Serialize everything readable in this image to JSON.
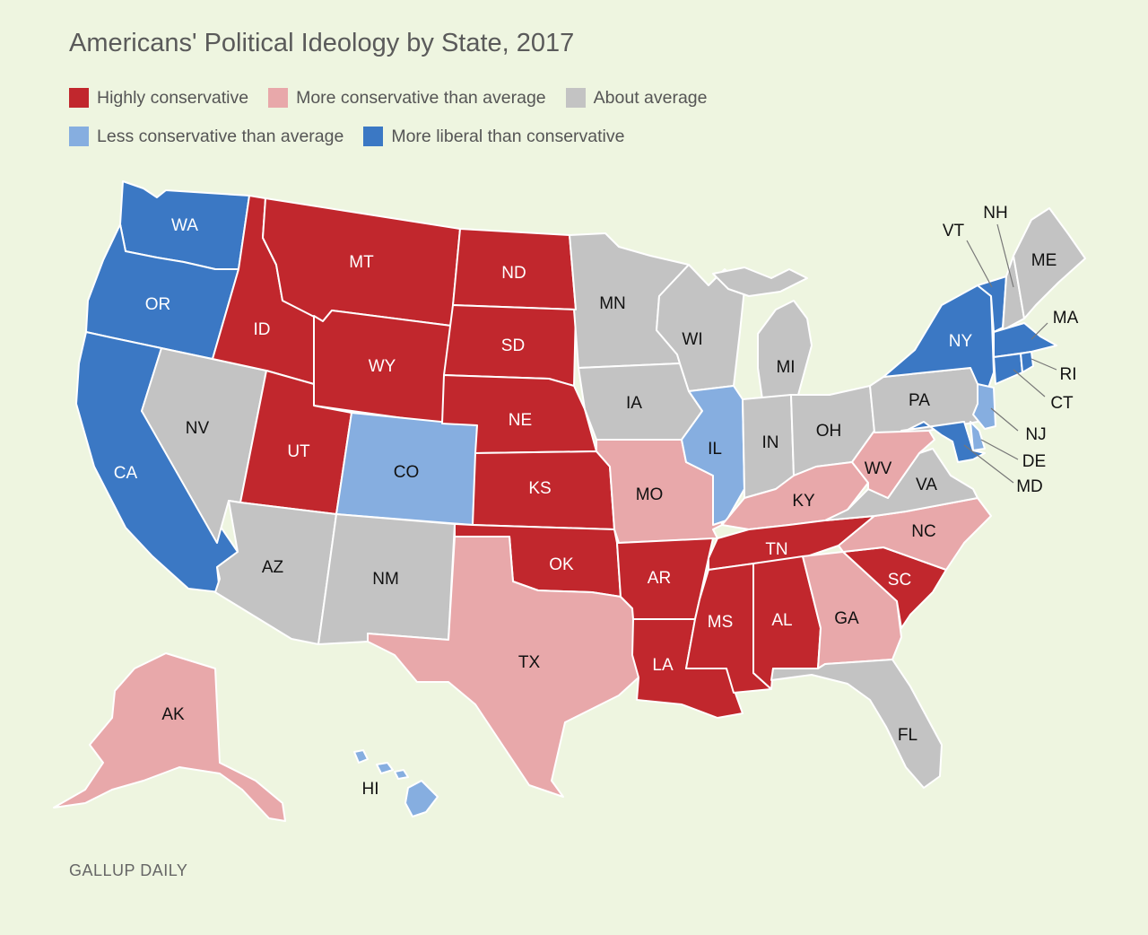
{
  "title": "Americans' Political Ideology by State, 2017",
  "source": "GALLUP DAILY",
  "colors": {
    "highly_conservative": "#c1272d",
    "more_conservative": "#e8a8aa",
    "about_average": "#c3c3c3",
    "less_conservative": "#86aee0",
    "more_liberal": "#3b78c4"
  },
  "legend": [
    {
      "key": "highly_conservative",
      "label": "Highly conservative"
    },
    {
      "key": "more_conservative",
      "label": "More conservative than average"
    },
    {
      "key": "about_average",
      "label": "About average"
    },
    {
      "key": "less_conservative",
      "label": "Less conservative than average"
    },
    {
      "key": "more_liberal",
      "label": "More liberal than conservative"
    }
  ],
  "states": [
    {
      "code": "WA",
      "category": "more_liberal"
    },
    {
      "code": "OR",
      "category": "more_liberal"
    },
    {
      "code": "CA",
      "category": "more_liberal"
    },
    {
      "code": "NV",
      "category": "about_average"
    },
    {
      "code": "ID",
      "category": "highly_conservative"
    },
    {
      "code": "MT",
      "category": "highly_conservative"
    },
    {
      "code": "WY",
      "category": "highly_conservative"
    },
    {
      "code": "UT",
      "category": "highly_conservative"
    },
    {
      "code": "CO",
      "category": "less_conservative"
    },
    {
      "code": "AZ",
      "category": "about_average"
    },
    {
      "code": "NM",
      "category": "about_average"
    },
    {
      "code": "ND",
      "category": "highly_conservative"
    },
    {
      "code": "SD",
      "category": "highly_conservative"
    },
    {
      "code": "NE",
      "category": "highly_conservative"
    },
    {
      "code": "KS",
      "category": "highly_conservative"
    },
    {
      "code": "OK",
      "category": "highly_conservative"
    },
    {
      "code": "TX",
      "category": "more_conservative"
    },
    {
      "code": "MN",
      "category": "about_average"
    },
    {
      "code": "IA",
      "category": "about_average"
    },
    {
      "code": "MO",
      "category": "more_conservative"
    },
    {
      "code": "AR",
      "category": "highly_conservative"
    },
    {
      "code": "LA",
      "category": "highly_conservative"
    },
    {
      "code": "WI",
      "category": "about_average"
    },
    {
      "code": "IL",
      "category": "less_conservative"
    },
    {
      "code": "MI",
      "category": "about_average"
    },
    {
      "code": "IN",
      "category": "about_average"
    },
    {
      "code": "OH",
      "category": "about_average"
    },
    {
      "code": "KY",
      "category": "more_conservative"
    },
    {
      "code": "TN",
      "category": "highly_conservative"
    },
    {
      "code": "MS",
      "category": "highly_conservative"
    },
    {
      "code": "AL",
      "category": "highly_conservative"
    },
    {
      "code": "GA",
      "category": "more_conservative"
    },
    {
      "code": "FL",
      "category": "about_average"
    },
    {
      "code": "SC",
      "category": "highly_conservative"
    },
    {
      "code": "NC",
      "category": "more_conservative"
    },
    {
      "code": "VA",
      "category": "about_average"
    },
    {
      "code": "WV",
      "category": "more_conservative"
    },
    {
      "code": "PA",
      "category": "about_average"
    },
    {
      "code": "NY",
      "category": "more_liberal"
    },
    {
      "code": "VT",
      "category": "more_liberal"
    },
    {
      "code": "NH",
      "category": "about_average"
    },
    {
      "code": "ME",
      "category": "about_average"
    },
    {
      "code": "MA",
      "category": "more_liberal"
    },
    {
      "code": "RI",
      "category": "more_liberal"
    },
    {
      "code": "CT",
      "category": "more_liberal"
    },
    {
      "code": "NJ",
      "category": "less_conservative"
    },
    {
      "code": "DE",
      "category": "less_conservative"
    },
    {
      "code": "MD",
      "category": "more_liberal"
    },
    {
      "code": "AK",
      "category": "more_conservative"
    },
    {
      "code": "HI",
      "category": "less_conservative"
    }
  ]
}
